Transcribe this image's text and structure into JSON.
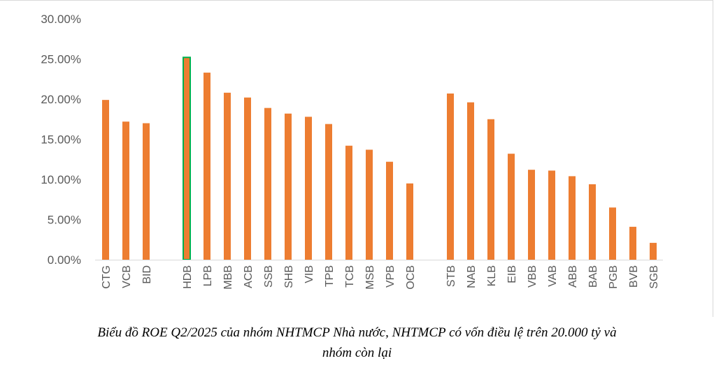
{
  "chart_data": {
    "type": "bar",
    "title": "",
    "xlabel": "",
    "ylabel": "",
    "ylim": [
      0,
      30
    ],
    "ytick_labels": [
      "0.00%",
      "5.00%",
      "10.00%",
      "15.00%",
      "20.00%",
      "25.00%",
      "30.00%"
    ],
    "ytick_values": [
      0,
      5,
      10,
      15,
      20,
      25,
      30
    ],
    "categories": [
      "CTG",
      "VCB",
      "BID",
      "HDB",
      "LPB",
      "MBB",
      "ACB",
      "SSB",
      "SHB",
      "VIB",
      "TPB",
      "TCB",
      "MSB",
      "VPB",
      "OCB",
      "STB",
      "NAB",
      "KLB",
      "EIB",
      "VBB",
      "VAB",
      "ABB",
      "BAB",
      "PGB",
      "BVB",
      "SGB"
    ],
    "groups": [
      [
        "CTG",
        "VCB",
        "BID"
      ],
      [
        "HDB",
        "LPB",
        "MBB",
        "ACB",
        "SSB",
        "SHB",
        "VIB",
        "TPB",
        "TCB",
        "MSB",
        "VPB",
        "OCB"
      ],
      [
        "STB",
        "NAB",
        "KLB",
        "EIB",
        "VBB",
        "VAB",
        "ABB",
        "BAB",
        "PGB",
        "BVB",
        "SGB"
      ]
    ],
    "values": [
      19.9,
      17.2,
      17.0,
      25.2,
      23.3,
      20.8,
      20.2,
      18.9,
      18.2,
      17.8,
      16.9,
      14.2,
      13.7,
      12.2,
      9.5,
      20.7,
      19.6,
      17.5,
      13.2,
      11.2,
      11.1,
      10.4,
      9.4,
      6.5,
      4.1,
      2.1
    ],
    "highlight": "HDB",
    "bar_color": "#ED7D31",
    "highlight_outline_color": "#00B050",
    "grid": false
  },
  "caption": {
    "line1": "Biểu đồ ROE Q2/2025 của nhóm NHTMCP Nhà nước, NHTMCP có vốn điều lệ trên 20.000 tỷ và",
    "line2": "nhóm còn lại"
  }
}
